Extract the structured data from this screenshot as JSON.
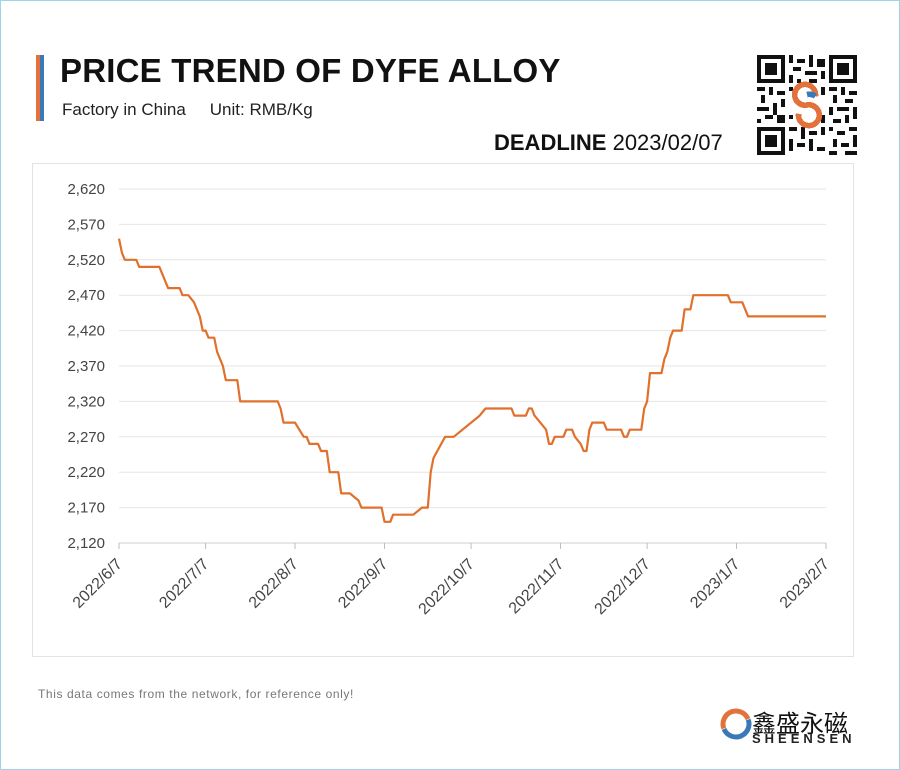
{
  "header": {
    "title": "PRICE TREND OF DYFE ALLOY",
    "subtitle_left": "Factory in China",
    "subtitle_right": "Unit: RMB/Kg",
    "deadline_label": "DEADLINE",
    "deadline_date": "2023/02/07"
  },
  "footer": {
    "disclaimer": "This data comes from the network, for reference only!",
    "brand_name": "鑫盛永磁",
    "brand_sub": "SHEENSEN"
  },
  "colors": {
    "line": "#E0702C",
    "grid": "#e6e6e6",
    "accent_orange": "#e2713b",
    "accent_blue": "#3a78b8"
  },
  "chart_data": {
    "type": "line",
    "title": "PRICE TREND OF DYFE ALLOY",
    "xlabel": "",
    "ylabel": "",
    "ylim": [
      2120,
      2620
    ],
    "yticks": [
      2120,
      2170,
      2220,
      2270,
      2320,
      2370,
      2420,
      2470,
      2520,
      2570,
      2620
    ],
    "ytick_labels": [
      "2,120",
      "2,170",
      "2,220",
      "2,270",
      "2,320",
      "2,370",
      "2,420",
      "2,470",
      "2,520",
      "2,570",
      "2,620"
    ],
    "xlim": [
      "2022-06-07",
      "2023-02-07"
    ],
    "xticks": [
      "2022-06-07",
      "2022-07-07",
      "2022-08-07",
      "2022-09-07",
      "2022-10-07",
      "2022-11-07",
      "2022-12-07",
      "2023-01-07",
      "2023-02-07"
    ],
    "xtick_labels": [
      "2022/6/7",
      "2022/7/7",
      "2022/8/7",
      "2022/9/7",
      "2022/10/7",
      "2022/11/7",
      "2022/12/7",
      "2023/1/7",
      "2023/2/7"
    ],
    "grid": true,
    "series": [
      {
        "points": [
          [
            "2022-06-07",
            2550
          ],
          [
            "2022-06-08",
            2530
          ],
          [
            "2022-06-09",
            2520
          ],
          [
            "2022-06-13",
            2520
          ],
          [
            "2022-06-14",
            2510
          ],
          [
            "2022-06-21",
            2510
          ],
          [
            "2022-06-24",
            2480
          ],
          [
            "2022-06-28",
            2480
          ],
          [
            "2022-06-29",
            2470
          ],
          [
            "2022-07-01",
            2470
          ],
          [
            "2022-07-03",
            2460
          ],
          [
            "2022-07-05",
            2440
          ],
          [
            "2022-07-06",
            2420
          ],
          [
            "2022-07-07",
            2420
          ],
          [
            "2022-07-08",
            2410
          ],
          [
            "2022-07-10",
            2410
          ],
          [
            "2022-07-11",
            2390
          ],
          [
            "2022-07-13",
            2370
          ],
          [
            "2022-07-14",
            2350
          ],
          [
            "2022-07-18",
            2350
          ],
          [
            "2022-07-19",
            2320
          ],
          [
            "2022-08-01",
            2320
          ],
          [
            "2022-08-02",
            2310
          ],
          [
            "2022-08-03",
            2290
          ],
          [
            "2022-08-07",
            2290
          ],
          [
            "2022-08-10",
            2270
          ],
          [
            "2022-08-11",
            2270
          ],
          [
            "2022-08-12",
            2260
          ],
          [
            "2022-08-15",
            2260
          ],
          [
            "2022-08-16",
            2250
          ],
          [
            "2022-08-18",
            2250
          ],
          [
            "2022-08-19",
            2220
          ],
          [
            "2022-08-22",
            2220
          ],
          [
            "2022-08-23",
            2190
          ],
          [
            "2022-08-26",
            2190
          ],
          [
            "2022-08-29",
            2180
          ],
          [
            "2022-08-30",
            2170
          ],
          [
            "2022-09-06",
            2170
          ],
          [
            "2022-09-07",
            2150
          ],
          [
            "2022-09-09",
            2150
          ],
          [
            "2022-09-10",
            2160
          ],
          [
            "2022-09-17",
            2160
          ],
          [
            "2022-09-20",
            2170
          ],
          [
            "2022-09-22",
            2170
          ],
          [
            "2022-09-23",
            2220
          ],
          [
            "2022-09-24",
            2240
          ],
          [
            "2022-09-28",
            2270
          ],
          [
            "2022-10-01",
            2270
          ],
          [
            "2022-10-10",
            2300
          ],
          [
            "2022-10-12",
            2310
          ],
          [
            "2022-10-21",
            2310
          ],
          [
            "2022-10-22",
            2300
          ],
          [
            "2022-10-26",
            2300
          ],
          [
            "2022-10-27",
            2310
          ],
          [
            "2022-10-28",
            2310
          ],
          [
            "2022-10-29",
            2300
          ],
          [
            "2022-10-31",
            2290
          ],
          [
            "2022-11-02",
            2280
          ],
          [
            "2022-11-03",
            2260
          ],
          [
            "2022-11-04",
            2260
          ],
          [
            "2022-11-05",
            2270
          ],
          [
            "2022-11-08",
            2270
          ],
          [
            "2022-11-09",
            2280
          ],
          [
            "2022-11-11",
            2280
          ],
          [
            "2022-11-12",
            2270
          ],
          [
            "2022-11-14",
            2260
          ],
          [
            "2022-11-15",
            2250
          ],
          [
            "2022-11-16",
            2250
          ],
          [
            "2022-11-17",
            2280
          ],
          [
            "2022-11-18",
            2290
          ],
          [
            "2022-11-22",
            2290
          ],
          [
            "2022-11-23",
            2280
          ],
          [
            "2022-11-28",
            2280
          ],
          [
            "2022-11-29",
            2270
          ],
          [
            "2022-11-30",
            2270
          ],
          [
            "2022-12-01",
            2280
          ],
          [
            "2022-12-05",
            2280
          ],
          [
            "2022-12-06",
            2310
          ],
          [
            "2022-12-07",
            2320
          ],
          [
            "2022-12-08",
            2360
          ],
          [
            "2022-12-12",
            2360
          ],
          [
            "2022-12-13",
            2380
          ],
          [
            "2022-12-14",
            2390
          ],
          [
            "2022-12-15",
            2410
          ],
          [
            "2022-12-16",
            2420
          ],
          [
            "2022-12-19",
            2420
          ],
          [
            "2022-12-20",
            2450
          ],
          [
            "2022-12-22",
            2450
          ],
          [
            "2022-12-23",
            2470
          ],
          [
            "2023-01-04",
            2470
          ],
          [
            "2023-01-05",
            2460
          ],
          [
            "2023-01-09",
            2460
          ],
          [
            "2023-01-11",
            2440
          ],
          [
            "2023-02-07",
            2440
          ]
        ]
      }
    ]
  }
}
